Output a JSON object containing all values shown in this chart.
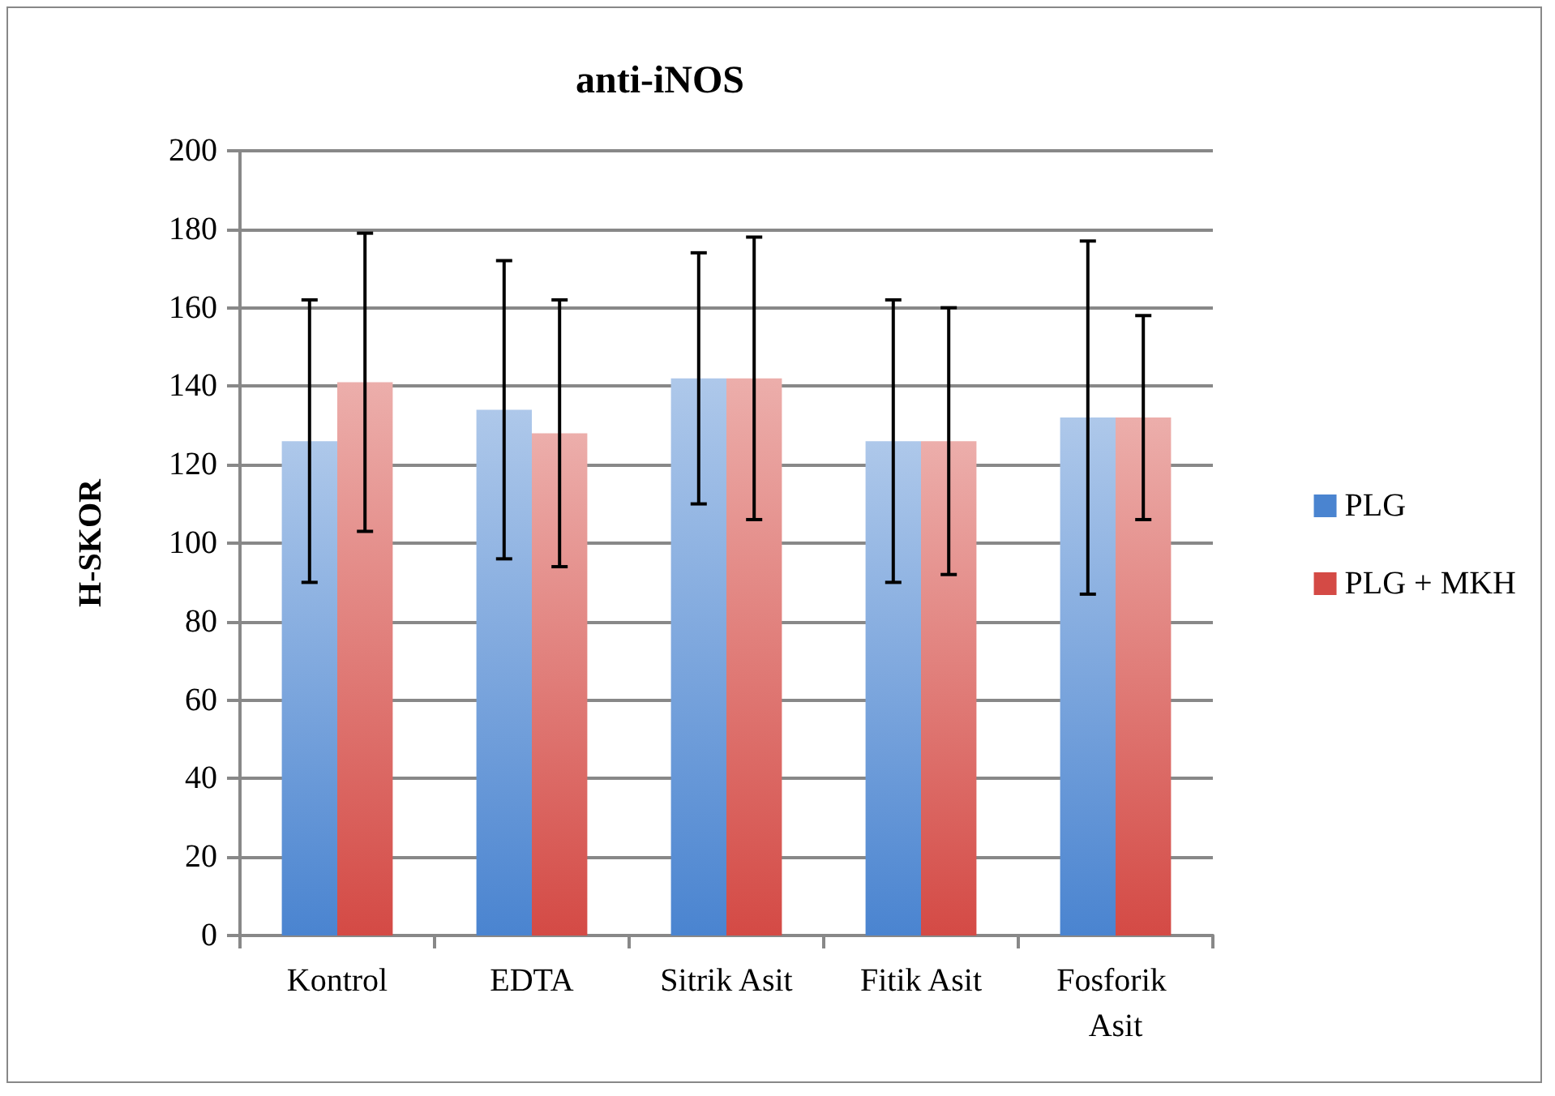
{
  "chart_data": {
    "type": "bar",
    "title": "anti-iNOS",
    "ylabel": "H-SKOR",
    "categories": [
      "Kontrol",
      "EDTA",
      "Sitrik Asit",
      "Fitik Asit",
      "Fosforik Asit"
    ],
    "series": [
      {
        "name": "PLG",
        "color": "#4a84d0",
        "values": [
          126,
          134,
          142,
          126,
          132
        ],
        "errors": [
          [
            90,
            162
          ],
          [
            96,
            172
          ],
          [
            110,
            174
          ],
          [
            90,
            162
          ],
          [
            87,
            177
          ]
        ]
      },
      {
        "name": "PLG + MKH",
        "color": "#d44a45",
        "values": [
          141,
          128,
          142,
          126,
          132
        ],
        "errors": [
          [
            103,
            179
          ],
          [
            94,
            162
          ],
          [
            106,
            178
          ],
          [
            92,
            160
          ],
          [
            106,
            158
          ]
        ]
      }
    ],
    "ylim": [
      0,
      200
    ],
    "yticks": [
      0,
      20,
      40,
      60,
      80,
      100,
      120,
      140,
      160,
      180,
      200
    ],
    "grid": "y",
    "legend": "right"
  }
}
